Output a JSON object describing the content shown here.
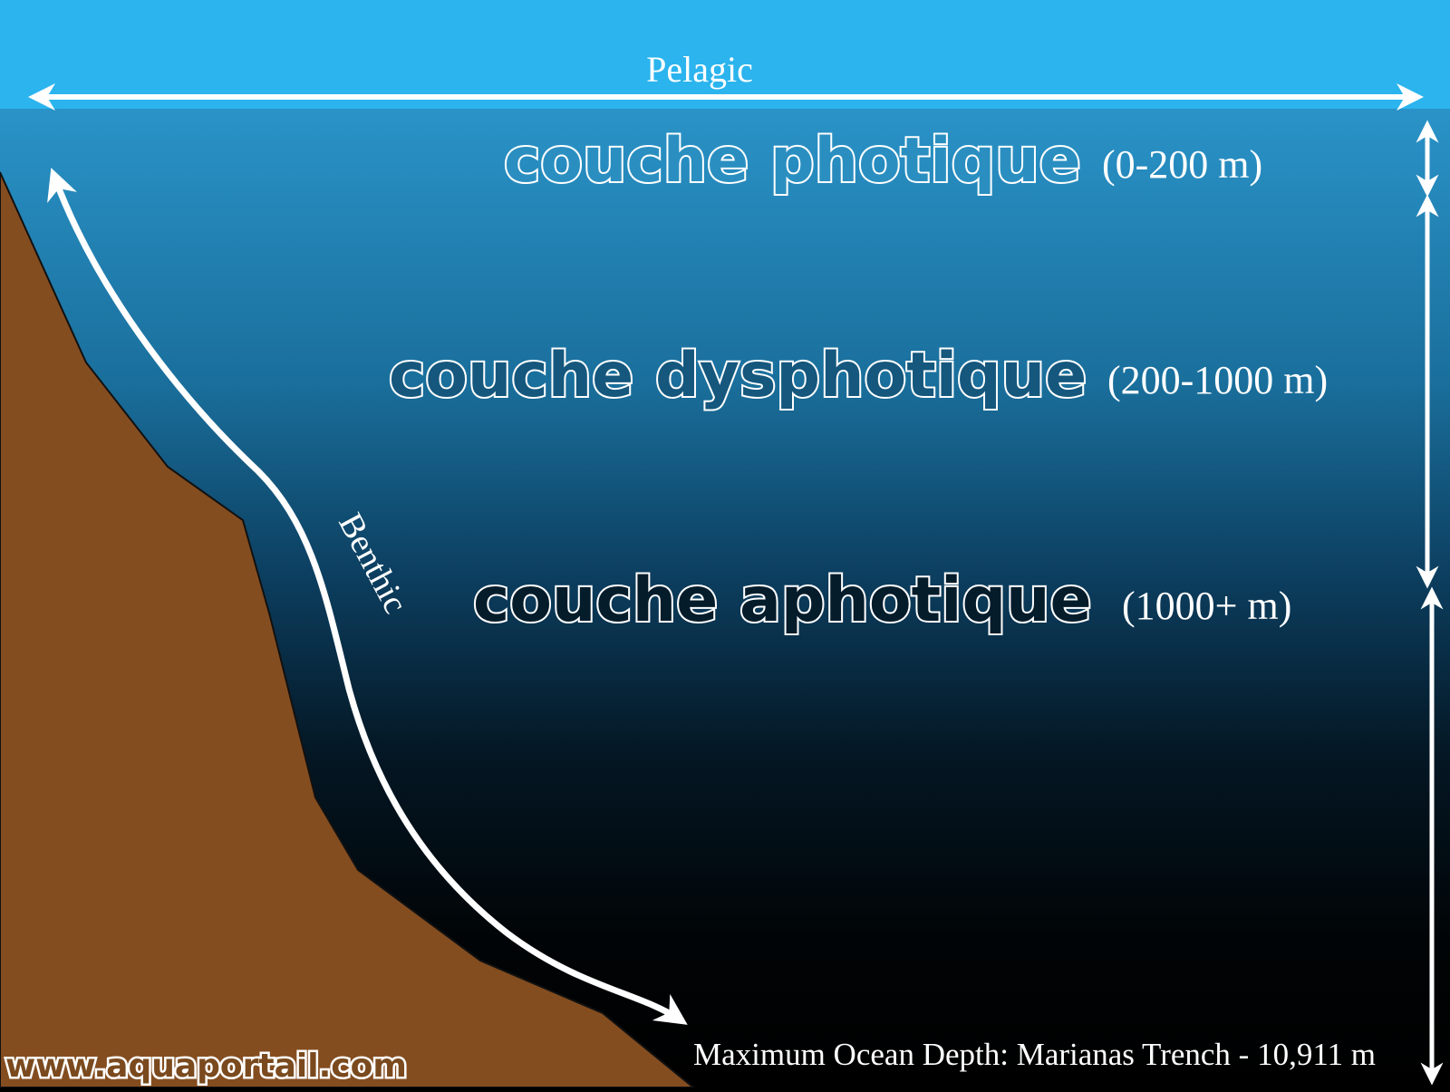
{
  "pelagic_label": "Pelagic",
  "benthic_label": "Benthic",
  "zones": [
    {
      "name": "couche photique",
      "range": "(0-200 m)"
    },
    {
      "name": "couche dysphotique",
      "range": "(200-1000 m)"
    },
    {
      "name": "couche aphotique",
      "range": "(1000+ m)"
    }
  ],
  "max_depth_note": "Maximum Ocean Depth: Marianas Trench - 10,911 m",
  "watermark": "www.aquaportail.com",
  "colors": {
    "surface": "#2bb4ee",
    "water_top": "#2a8fc3",
    "water_mid": "#0e3c5a",
    "water_deep": "#000000",
    "seafloor": "#844d20",
    "arrow": "#ffffff"
  }
}
